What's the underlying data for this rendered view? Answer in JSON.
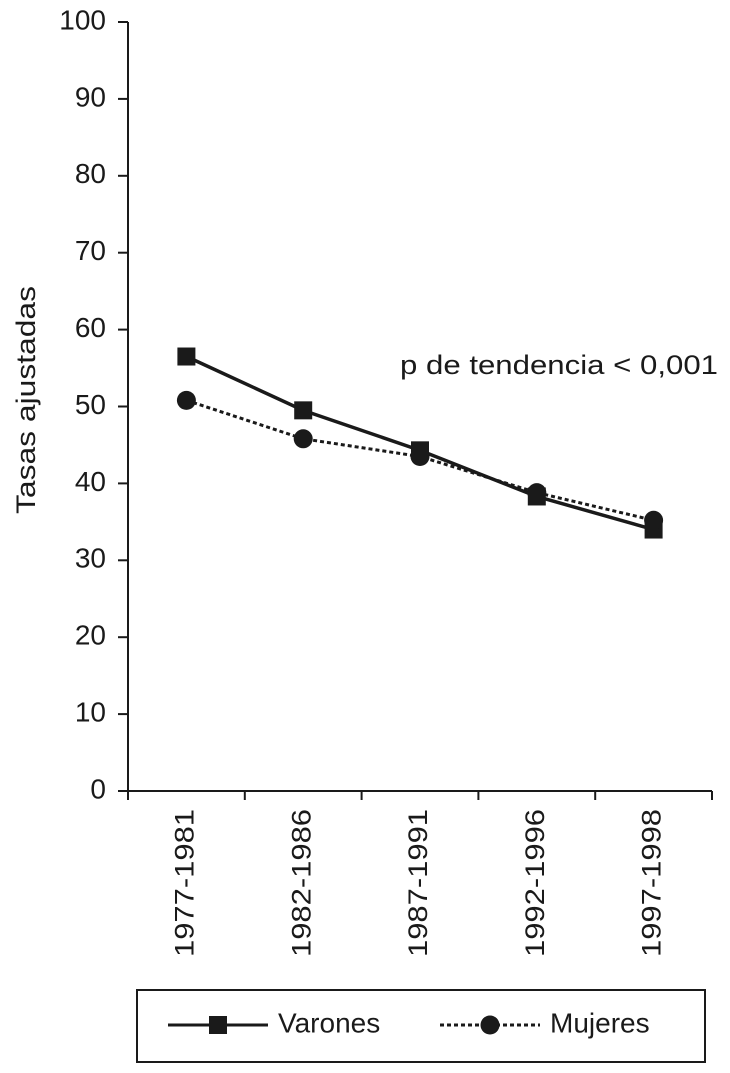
{
  "chart_data": {
    "type": "line",
    "y_label": "Tasas ajustadas",
    "annotation": "p de tendencia < 0,001",
    "categories": [
      "1977-1981",
      "1982-1986",
      "1987-1991",
      "1992-1996",
      "1997-1998"
    ],
    "series": [
      {
        "name": "Varones",
        "color": "#1a1a1a",
        "line_style": "solid",
        "marker": "square",
        "values": [
          56.5,
          49.5,
          44.3,
          38.3,
          34
        ]
      },
      {
        "name": "Mujeres",
        "color": "#1a1a1a",
        "line_style": "dotted",
        "marker": "circle",
        "values": [
          50.8,
          45.8,
          43.5,
          38.8,
          35.2
        ]
      }
    ],
    "ylim": [
      0,
      100
    ],
    "yticks": [
      0,
      10,
      20,
      30,
      40,
      50,
      60,
      70,
      80,
      90,
      100
    ],
    "grid": false,
    "legend": "bottom"
  }
}
